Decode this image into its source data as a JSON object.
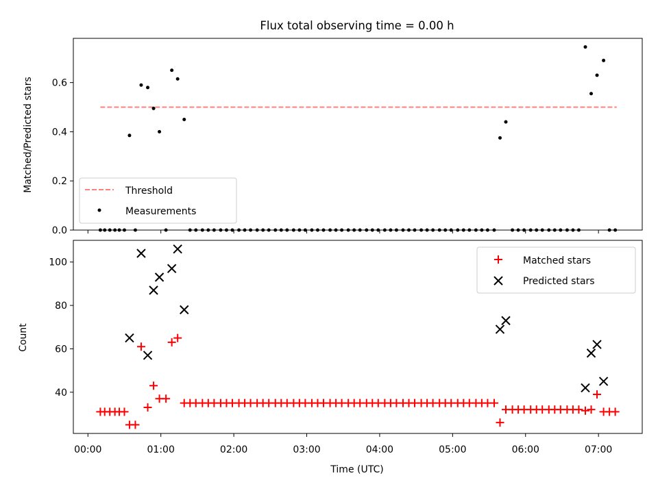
{
  "chart_data": [
    {
      "type": "scatter",
      "title": "Flux total observing time = 0.00 h",
      "xlabel": "",
      "ylabel": "Matched/Predicted stars",
      "xlim": [
        -0.2,
        7.6
      ],
      "ylim": [
        0,
        0.78
      ],
      "yticks": [
        0.0,
        0.2,
        0.4,
        0.6
      ],
      "ytick_labels": [
        "0.0",
        "0.2",
        "0.4",
        "0.6"
      ],
      "threshold": {
        "name": "Threshold",
        "value": 0.5,
        "x_start": 0.17,
        "x_end": 7.25,
        "color": "#ff7f7f"
      },
      "series": [
        {
          "name": "Measurements",
          "color": "#000000",
          "marker": "dot",
          "points": [
            [
              0.17,
              0
            ],
            [
              0.23,
              0
            ],
            [
              0.3,
              0
            ],
            [
              0.37,
              0
            ],
            [
              0.43,
              0
            ],
            [
              0.5,
              0
            ],
            [
              0.57,
              0.385
            ],
            [
              0.65,
              0
            ],
            [
              0.73,
              0.59
            ],
            [
              0.82,
              0.58
            ],
            [
              0.9,
              0.495
            ],
            [
              0.98,
              0.4
            ],
            [
              1.07,
              0
            ],
            [
              1.15,
              0.65
            ],
            [
              1.23,
              0.615
            ],
            [
              1.32,
              0.45
            ],
            [
              1.4,
              0
            ],
            [
              1.48,
              0
            ],
            [
              1.57,
              0
            ],
            [
              1.65,
              0
            ],
            [
              1.73,
              0
            ],
            [
              1.82,
              0
            ],
            [
              1.9,
              0
            ],
            [
              1.98,
              0
            ],
            [
              2.07,
              0
            ],
            [
              2.15,
              0
            ],
            [
              2.23,
              0
            ],
            [
              2.32,
              0
            ],
            [
              2.4,
              0
            ],
            [
              2.48,
              0
            ],
            [
              2.57,
              0
            ],
            [
              2.65,
              0
            ],
            [
              2.73,
              0
            ],
            [
              2.82,
              0
            ],
            [
              2.9,
              0
            ],
            [
              2.98,
              0
            ],
            [
              3.07,
              0
            ],
            [
              3.15,
              0
            ],
            [
              3.23,
              0
            ],
            [
              3.32,
              0
            ],
            [
              3.4,
              0
            ],
            [
              3.48,
              0
            ],
            [
              3.57,
              0
            ],
            [
              3.65,
              0
            ],
            [
              3.73,
              0
            ],
            [
              3.82,
              0
            ],
            [
              3.9,
              0
            ],
            [
              3.98,
              0
            ],
            [
              4.07,
              0
            ],
            [
              4.15,
              0
            ],
            [
              4.23,
              0
            ],
            [
              4.32,
              0
            ],
            [
              4.4,
              0
            ],
            [
              4.48,
              0
            ],
            [
              4.57,
              0
            ],
            [
              4.65,
              0
            ],
            [
              4.73,
              0
            ],
            [
              4.82,
              0
            ],
            [
              4.9,
              0
            ],
            [
              4.98,
              0
            ],
            [
              5.07,
              0
            ],
            [
              5.15,
              0
            ],
            [
              5.23,
              0
            ],
            [
              5.32,
              0
            ],
            [
              5.4,
              0
            ],
            [
              5.48,
              0
            ],
            [
              5.57,
              0
            ],
            [
              5.65,
              0.375
            ],
            [
              5.73,
              0.44
            ],
            [
              5.82,
              0
            ],
            [
              5.9,
              0
            ],
            [
              5.98,
              0
            ],
            [
              6.07,
              0
            ],
            [
              6.15,
              0
            ],
            [
              6.23,
              0
            ],
            [
              6.32,
              0
            ],
            [
              6.4,
              0
            ],
            [
              6.48,
              0
            ],
            [
              6.57,
              0
            ],
            [
              6.65,
              0
            ],
            [
              6.73,
              0
            ],
            [
              6.82,
              0.745
            ],
            [
              6.9,
              0.555
            ],
            [
              6.98,
              0.63
            ],
            [
              7.07,
              0.69
            ],
            [
              7.15,
              0
            ],
            [
              7.23,
              0
            ]
          ]
        }
      ],
      "legend": {
        "position": "lower-left",
        "entries": [
          "Threshold",
          "Measurements"
        ]
      }
    },
    {
      "type": "scatter",
      "title": "",
      "xlabel": "Time (UTC)",
      "ylabel": "Count",
      "xlim": [
        -0.2,
        7.6
      ],
      "ylim": [
        21,
        110
      ],
      "xticks": [
        0,
        1,
        2,
        3,
        4,
        5,
        6,
        7
      ],
      "xtick_labels": [
        "00:00",
        "01:00",
        "02:00",
        "03:00",
        "04:00",
        "05:00",
        "06:00",
        "07:00"
      ],
      "yticks": [
        40,
        60,
        80,
        100
      ],
      "ytick_labels": [
        "40",
        "60",
        "80",
        "100"
      ],
      "series": [
        {
          "name": "Matched stars",
          "color": "#ff0000",
          "marker": "plus",
          "points": [
            [
              0.17,
              31
            ],
            [
              0.23,
              31
            ],
            [
              0.3,
              31
            ],
            [
              0.37,
              31
            ],
            [
              0.43,
              31
            ],
            [
              0.5,
              31
            ],
            [
              0.57,
              25
            ],
            [
              0.65,
              25
            ],
            [
              0.73,
              61
            ],
            [
              0.82,
              33
            ],
            [
              0.9,
              43
            ],
            [
              0.98,
              37
            ],
            [
              1.07,
              37
            ],
            [
              1.15,
              63
            ],
            [
              1.23,
              65
            ],
            [
              1.32,
              35
            ],
            [
              1.4,
              35
            ],
            [
              1.48,
              35
            ],
            [
              1.57,
              35
            ],
            [
              1.65,
              35
            ],
            [
              1.73,
              35
            ],
            [
              1.82,
              35
            ],
            [
              1.9,
              35
            ],
            [
              1.98,
              35
            ],
            [
              2.07,
              35
            ],
            [
              2.15,
              35
            ],
            [
              2.23,
              35
            ],
            [
              2.32,
              35
            ],
            [
              2.4,
              35
            ],
            [
              2.48,
              35
            ],
            [
              2.57,
              35
            ],
            [
              2.65,
              35
            ],
            [
              2.73,
              35
            ],
            [
              2.82,
              35
            ],
            [
              2.9,
              35
            ],
            [
              2.98,
              35
            ],
            [
              3.07,
              35
            ],
            [
              3.15,
              35
            ],
            [
              3.23,
              35
            ],
            [
              3.32,
              35
            ],
            [
              3.4,
              35
            ],
            [
              3.48,
              35
            ],
            [
              3.57,
              35
            ],
            [
              3.65,
              35
            ],
            [
              3.73,
              35
            ],
            [
              3.82,
              35
            ],
            [
              3.9,
              35
            ],
            [
              3.98,
              35
            ],
            [
              4.07,
              35
            ],
            [
              4.15,
              35
            ],
            [
              4.23,
              35
            ],
            [
              4.32,
              35
            ],
            [
              4.4,
              35
            ],
            [
              4.48,
              35
            ],
            [
              4.57,
              35
            ],
            [
              4.65,
              35
            ],
            [
              4.73,
              35
            ],
            [
              4.82,
              35
            ],
            [
              4.9,
              35
            ],
            [
              4.98,
              35
            ],
            [
              5.07,
              35
            ],
            [
              5.15,
              35
            ],
            [
              5.23,
              35
            ],
            [
              5.32,
              35
            ],
            [
              5.4,
              35
            ],
            [
              5.48,
              35
            ],
            [
              5.57,
              35
            ],
            [
              5.65,
              26
            ],
            [
              5.73,
              32
            ],
            [
              5.82,
              32
            ],
            [
              5.9,
              32
            ],
            [
              5.98,
              32
            ],
            [
              6.07,
              32
            ],
            [
              6.15,
              32
            ],
            [
              6.23,
              32
            ],
            [
              6.32,
              32
            ],
            [
              6.4,
              32
            ],
            [
              6.48,
              32
            ],
            [
              6.57,
              32
            ],
            [
              6.65,
              32
            ],
            [
              6.73,
              32
            ],
            [
              6.82,
              31.5
            ],
            [
              6.9,
              32
            ],
            [
              6.98,
              39
            ],
            [
              7.07,
              31
            ],
            [
              7.15,
              31
            ],
            [
              7.23,
              31
            ]
          ]
        },
        {
          "name": "Predicted stars",
          "color": "#000000",
          "marker": "x",
          "points": [
            [
              0.57,
              65
            ],
            [
              0.73,
              104
            ],
            [
              0.82,
              57
            ],
            [
              0.9,
              87
            ],
            [
              0.98,
              93
            ],
            [
              1.15,
              97
            ],
            [
              1.23,
              106
            ],
            [
              1.32,
              78
            ],
            [
              5.65,
              69
            ],
            [
              5.73,
              73
            ],
            [
              6.82,
              42
            ],
            [
              6.9,
              58
            ],
            [
              6.98,
              62
            ],
            [
              7.07,
              45
            ]
          ]
        }
      ],
      "legend": {
        "position": "top-right",
        "entries": [
          "Matched stars",
          "Predicted stars"
        ]
      }
    }
  ]
}
